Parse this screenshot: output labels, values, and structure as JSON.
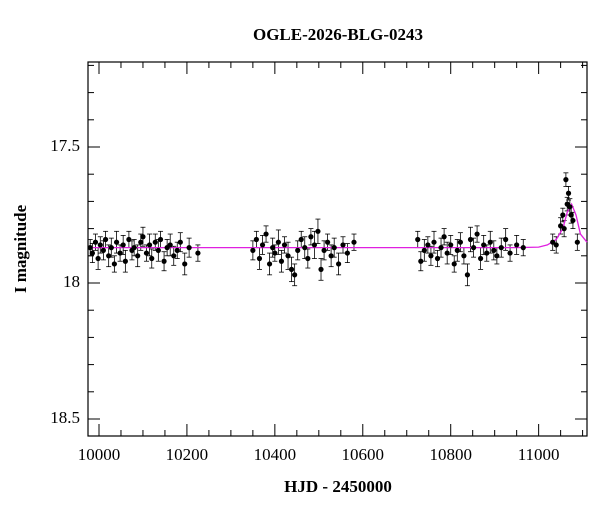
{
  "chart_data": {
    "type": "errorbar-scatter",
    "title": "OGLE-2026-BLG-0243",
    "xlabel": "HJD - 2450000",
    "ylabel": "I magnitude",
    "xlim": [
      9975,
      11110
    ],
    "ylim": [
      18.5625,
      17.1875
    ],
    "xticks": [
      10000,
      10200,
      10400,
      10600,
      10800,
      11000
    ],
    "yticks": [
      17.5,
      18,
      18.5
    ],
    "xminorticks": [
      10050,
      10100,
      10150,
      10250,
      10300,
      10350,
      10450,
      10500,
      10550,
      10650,
      10700,
      10750,
      10850,
      10900,
      10950,
      11050,
      11100
    ],
    "yminorticks": [
      17.2,
      17.3,
      17.4,
      17.6,
      17.7,
      17.8,
      17.9,
      18.1,
      18.2,
      18.3,
      18.4
    ],
    "point_color": "#000000",
    "model_color": "#e020e0",
    "x": [
      9980,
      9985,
      9992,
      9998,
      10003,
      10010,
      10015,
      10022,
      10028,
      10035,
      10040,
      10048,
      10055,
      10060,
      10068,
      10075,
      10080,
      10088,
      10095,
      10100,
      10108,
      10115,
      10120,
      10128,
      10135,
      10140,
      10148,
      10155,
      10162,
      10170,
      10178,
      10185,
      10195,
      10205,
      10225,
      10350,
      10358,
      10365,
      10372,
      10380,
      10388,
      10395,
      10400,
      10408,
      10415,
      10422,
      10430,
      10438,
      10445,
      10452,
      10460,
      10468,
      10475,
      10482,
      10490,
      10498,
      10505,
      10512,
      10520,
      10528,
      10535,
      10545,
      10555,
      10565,
      10580,
      10725,
      10732,
      10740,
      10748,
      10755,
      10762,
      10770,
      10778,
      10785,
      10792,
      10800,
      10808,
      10815,
      10822,
      10830,
      10838,
      10845,
      10852,
      10860,
      10868,
      10875,
      10882,
      10890,
      10898,
      10905,
      10915,
      10925,
      10935,
      10950,
      10965,
      11032,
      11040,
      11050,
      11055,
      11058,
      11062,
      11065,
      11068,
      11071,
      11074,
      11078,
      11088
    ],
    "values": [
      17.87,
      17.89,
      17.85,
      17.91,
      17.86,
      17.88,
      17.84,
      17.9,
      17.87,
      17.93,
      17.85,
      17.89,
      17.86,
      17.92,
      17.84,
      17.88,
      17.87,
      17.9,
      17.85,
      17.83,
      17.89,
      17.86,
      17.91,
      17.85,
      17.88,
      17.84,
      17.92,
      17.87,
      17.86,
      17.9,
      17.88,
      17.85,
      17.93,
      17.87,
      17.89,
      17.88,
      17.84,
      17.91,
      17.86,
      17.82,
      17.93,
      17.87,
      17.89,
      17.85,
      17.92,
      17.86,
      17.9,
      17.95,
      17.97,
      17.88,
      17.84,
      17.87,
      17.91,
      17.83,
      17.86,
      17.81,
      17.95,
      17.88,
      17.85,
      17.9,
      17.87,
      17.93,
      17.86,
      17.89,
      17.85,
      17.84,
      17.92,
      17.88,
      17.86,
      17.9,
      17.85,
      17.91,
      17.87,
      17.83,
      17.89,
      17.86,
      17.93,
      17.88,
      17.85,
      17.9,
      17.97,
      17.84,
      17.87,
      17.82,
      17.91,
      17.86,
      17.89,
      17.85,
      17.88,
      17.9,
      17.87,
      17.84,
      17.89,
      17.86,
      17.87,
      17.85,
      17.86,
      17.79,
      17.75,
      17.8,
      17.62,
      17.71,
      17.67,
      17.72,
      17.75,
      17.77,
      17.85
    ],
    "errors": [
      0.03,
      0.035,
      0.03,
      0.04,
      0.03,
      0.035,
      0.03,
      0.04,
      0.035,
      0.03,
      0.04,
      0.03,
      0.035,
      0.04,
      0.03,
      0.035,
      0.03,
      0.04,
      0.03,
      0.035,
      0.03,
      0.04,
      0.035,
      0.03,
      0.04,
      0.03,
      0.035,
      0.03,
      0.04,
      0.035,
      0.03,
      0.035,
      0.04,
      0.035,
      0.03,
      0.035,
      0.03,
      0.04,
      0.035,
      0.03,
      0.04,
      0.035,
      0.03,
      0.045,
      0.04,
      0.03,
      0.05,
      0.045,
      0.04,
      0.035,
      0.03,
      0.04,
      0.035,
      0.03,
      0.05,
      0.045,
      0.04,
      0.035,
      0.03,
      0.04,
      0.035,
      0.04,
      0.03,
      0.035,
      0.03,
      0.03,
      0.035,
      0.04,
      0.03,
      0.035,
      0.04,
      0.03,
      0.035,
      0.03,
      0.04,
      0.035,
      0.03,
      0.04,
      0.035,
      0.03,
      0.04,
      0.045,
      0.035,
      0.03,
      0.04,
      0.035,
      0.03,
      0.04,
      0.035,
      0.03,
      0.035,
      0.04,
      0.03,
      0.035,
      0.03,
      0.03,
      0.03,
      0.03,
      0.025,
      0.03,
      0.025,
      0.025,
      0.025,
      0.03,
      0.03,
      0.03,
      0.03
    ],
    "model": {
      "x": [
        9975,
        10950,
        11000,
        11020,
        11040,
        11055,
        11065,
        11075,
        11085,
        11095,
        11110
      ],
      "values": [
        17.87,
        17.87,
        17.868,
        17.86,
        17.84,
        17.8,
        17.74,
        17.71,
        17.75,
        17.82,
        17.85
      ]
    }
  }
}
